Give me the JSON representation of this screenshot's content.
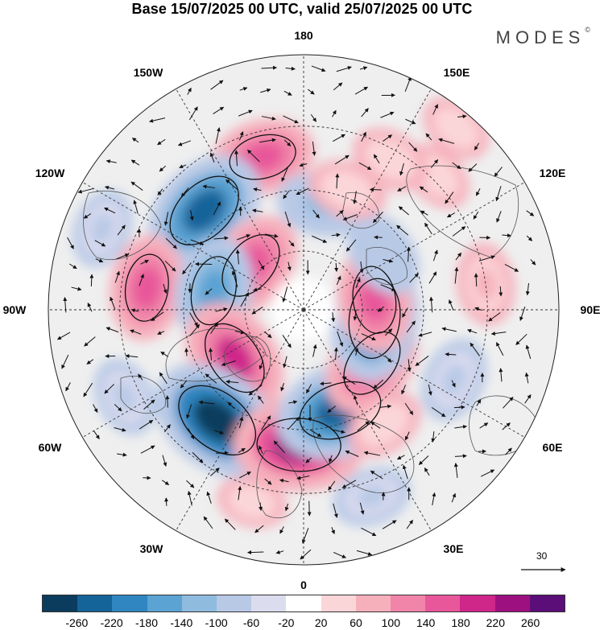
{
  "title": "Base 15/07/2025 00 UTC, valid 25/07/2025 00 UTC",
  "brand": {
    "name": "MODES",
    "mark": "©"
  },
  "longitude_labels": [
    "180",
    "150E",
    "120E",
    "90E",
    "60E",
    "30E",
    "0",
    "30W",
    "60W",
    "90W",
    "120W",
    "150W"
  ],
  "reference_vector": {
    "value": "30"
  },
  "colorbar": {
    "colors": [
      "#0b3c5d",
      "#14649a",
      "#2f86c1",
      "#5aa3d3",
      "#8fbbdf",
      "#b8c9e6",
      "#dcdcef",
      "#ffffff",
      "#fbd6d8",
      "#f6b0bc",
      "#f084a9",
      "#e8579a",
      "#cf268a",
      "#9d1080",
      "#5b0e78"
    ],
    "ticks": [
      "-260",
      "-220",
      "-180",
      "-140",
      "-100",
      "-60",
      "-20",
      "20",
      "60",
      "100",
      "140",
      "180",
      "220",
      "260"
    ]
  },
  "anomaly_field": [
    {
      "lon": 195,
      "r": 0.62,
      "v": 150
    },
    {
      "lon": 170,
      "r": 0.42,
      "v": -100
    },
    {
      "lon": 225,
      "r": 0.55,
      "v": -230
    },
    {
      "lon": 230,
      "r": 0.27,
      "v": 170
    },
    {
      "lon": 262,
      "r": 0.62,
      "v": 150
    },
    {
      "lon": 258,
      "r": 0.36,
      "v": -160
    },
    {
      "lon": 305,
      "r": 0.33,
      "v": 200
    },
    {
      "lon": 322,
      "r": 0.55,
      "v": -260
    },
    {
      "lon": 358,
      "r": 0.53,
      "v": 240
    },
    {
      "lon": 20,
      "r": 0.42,
      "v": -240
    },
    {
      "lon": 52,
      "r": 0.34,
      "v": 170
    },
    {
      "lon": 83,
      "r": 0.28,
      "v": -220
    },
    {
      "lon": 98,
      "r": 0.28,
      "v": 150
    },
    {
      "lon": 125,
      "r": 0.38,
      "v": -90
    },
    {
      "lon": 135,
      "r": 0.74,
      "v": 40
    },
    {
      "lon": 98,
      "r": 0.72,
      "v": 70
    },
    {
      "lon": 65,
      "r": 0.65,
      "v": -80
    },
    {
      "lon": 150,
      "r": 0.68,
      "v": 60
    },
    {
      "lon": 140,
      "r": 0.93,
      "v": 40
    },
    {
      "lon": 35,
      "r": 0.55,
      "v": 60
    },
    {
      "lon": 345,
      "r": 0.78,
      "v": 30
    },
    {
      "lon": 20,
      "r": 0.78,
      "v": -60
    },
    {
      "lon": 296,
      "r": 0.78,
      "v": -60
    },
    {
      "lon": 248,
      "r": 0.85,
      "v": -60
    },
    {
      "lon": 160,
      "r": 0.5,
      "v": 60
    }
  ]
}
